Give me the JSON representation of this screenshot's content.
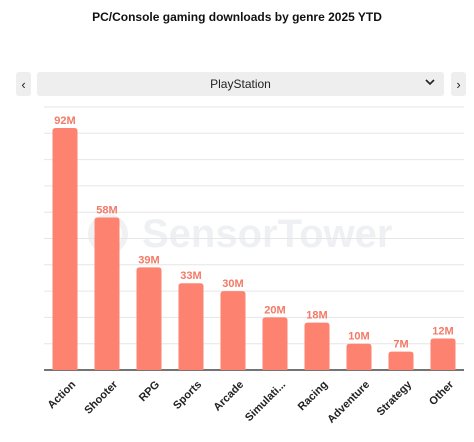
{
  "title": "PC/Console gaming downloads by genre 2025 YTD",
  "selector": {
    "value": "PlayStation",
    "prev_label": "‹",
    "next_label": "›",
    "chevron_icon": "chevron-down-icon"
  },
  "watermark": "SensorTower",
  "colors": {
    "bar": "#fd8370",
    "label": "#f27a66",
    "grid": "#e6e6e6",
    "axis": "#222222"
  },
  "chart_data": {
    "type": "bar",
    "title": "PC/Console gaming downloads by genre 2025 YTD",
    "xlabel": "",
    "ylabel": "",
    "categories": [
      "Action",
      "Shooter",
      "RPG",
      "Sports",
      "Arcade",
      "Simulati...",
      "Racing",
      "Adventure",
      "Strategy",
      "Other"
    ],
    "values": [
      92,
      58,
      39,
      33,
      30,
      20,
      18,
      10,
      7,
      12
    ],
    "value_labels": [
      "92M",
      "58M",
      "39M",
      "33M",
      "30M",
      "20M",
      "18M",
      "10M",
      "7M",
      "12M"
    ],
    "ylim": [
      0,
      100
    ],
    "grid": true,
    "legend": "none"
  }
}
